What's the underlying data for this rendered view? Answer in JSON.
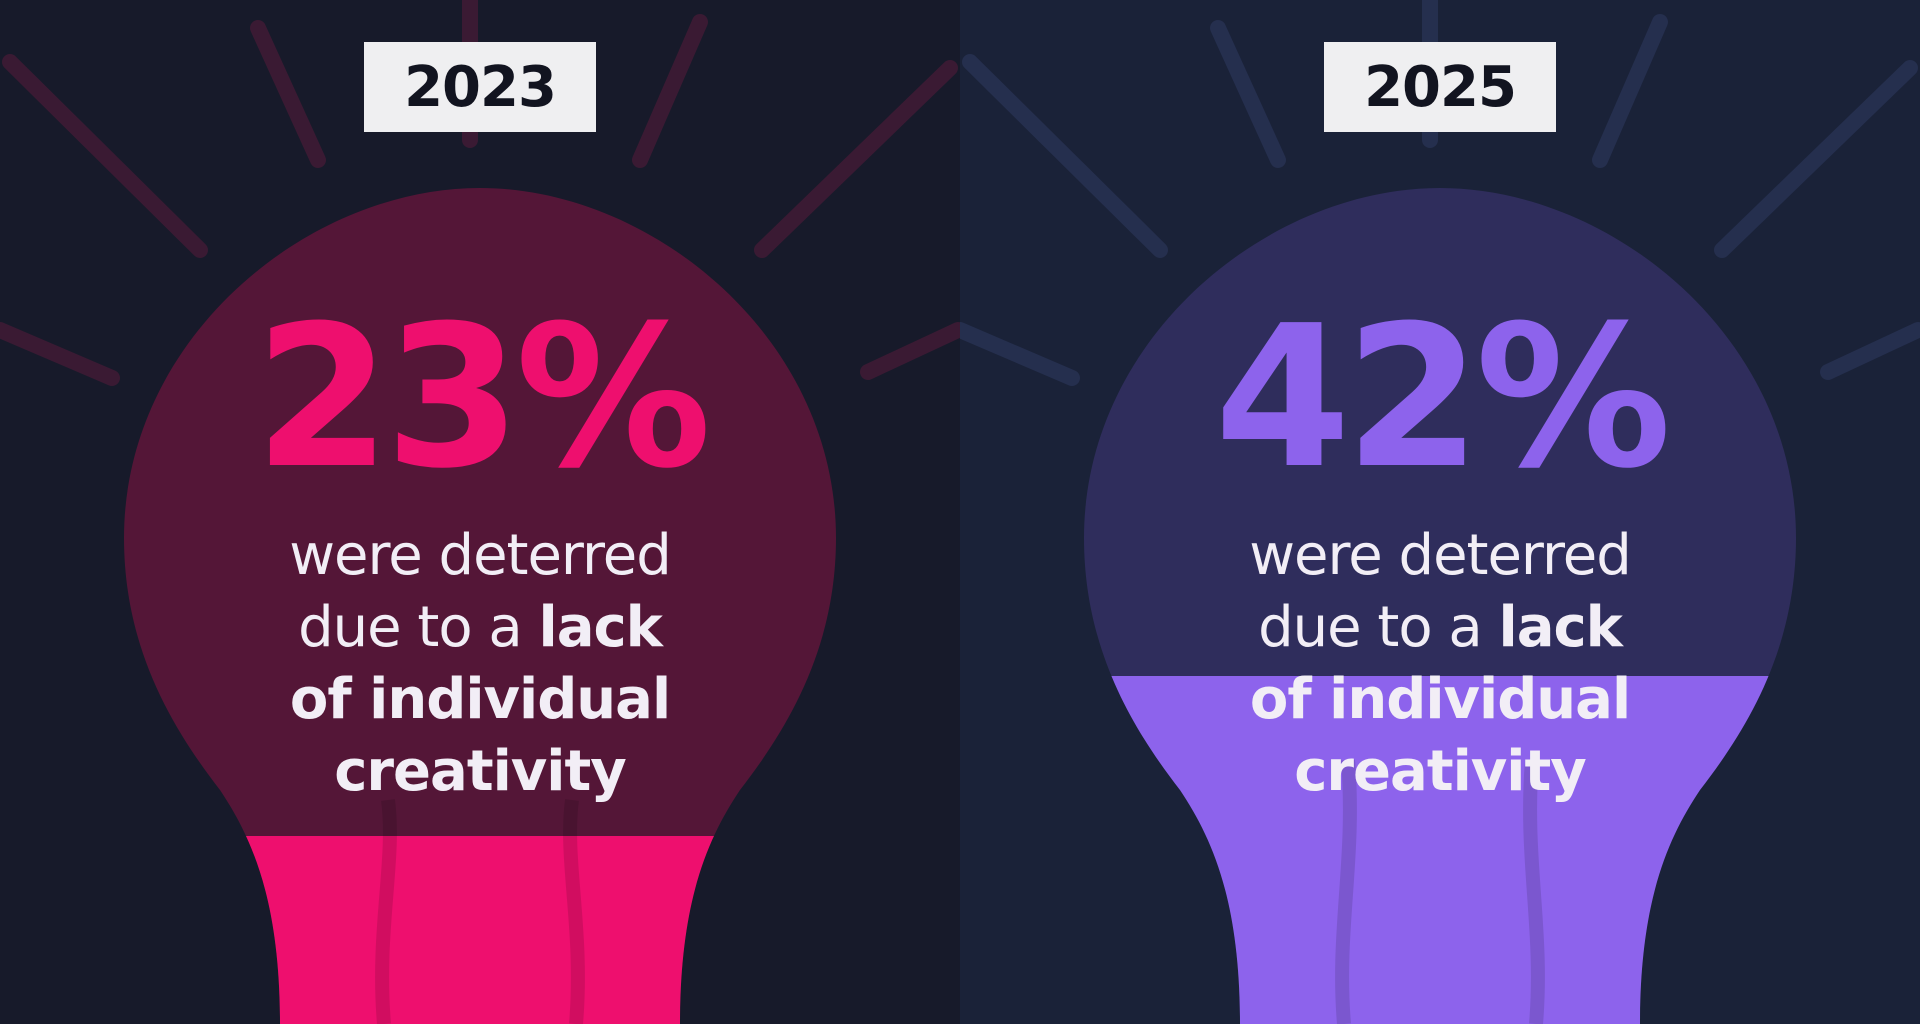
{
  "chart_data": [
    {
      "type": "bar",
      "categories": [
        "2023"
      ],
      "values": [
        23
      ],
      "unit": "%",
      "value_label": "23%",
      "caption": {
        "line1": "were deterred",
        "line2_regular": "due to a ",
        "line2_bold": "lack",
        "line3_bold": "of individual",
        "line4_bold": "creativity"
      },
      "colors": {
        "accent": "#ee0f6e",
        "bulb": "#541637",
        "background": "#171a2a",
        "rays": "#3a1a33"
      }
    },
    {
      "type": "bar",
      "categories": [
        "2025"
      ],
      "values": [
        42
      ],
      "unit": "%",
      "value_label": "42%",
      "caption": {
        "line1": "were deterred",
        "line2_regular": "due to a ",
        "line2_bold": "lack",
        "line3_bold": "of individual",
        "line4_bold": "creativity"
      },
      "colors": {
        "accent": "#8d63ec",
        "bulb": "#2f2d5c",
        "background": "#1a2238",
        "rays": "#252f4e"
      }
    }
  ]
}
